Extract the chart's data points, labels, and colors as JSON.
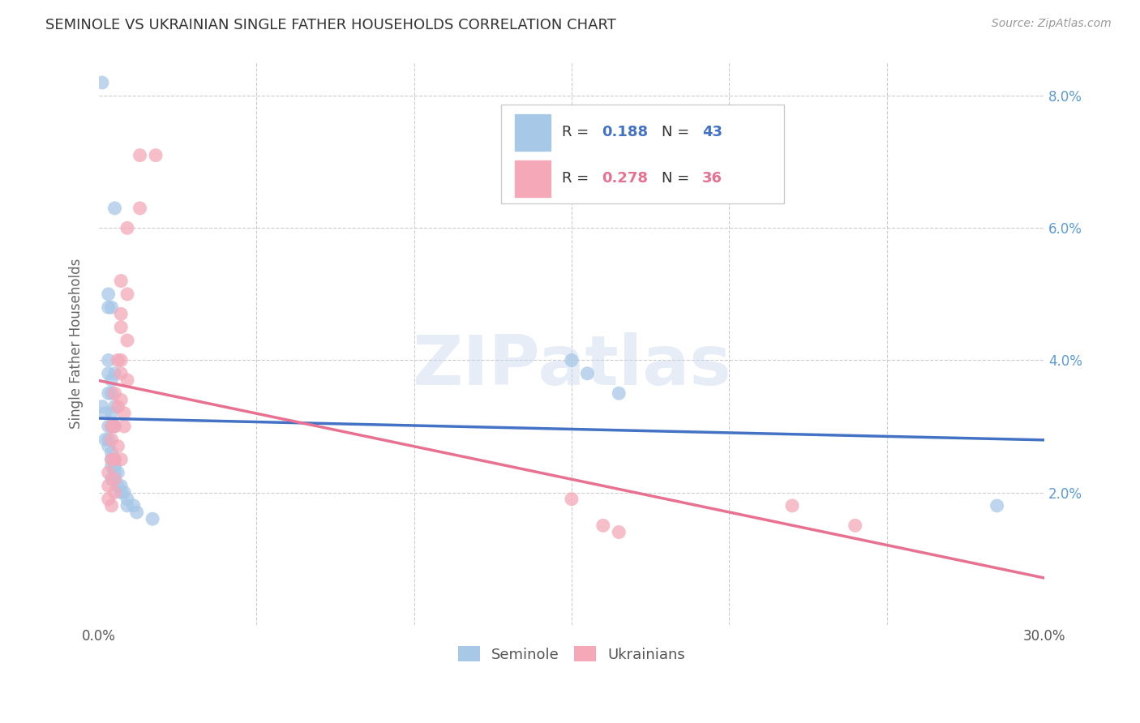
{
  "title": "SEMINOLE VS UKRAINIAN SINGLE FATHER HOUSEHOLDS CORRELATION CHART",
  "source": "Source: ZipAtlas.com",
  "ylabel": "Single Father Households",
  "xlim": [
    0.0,
    0.3
  ],
  "ylim": [
    0.0,
    0.085
  ],
  "xticks": [
    0.0,
    0.05,
    0.1,
    0.15,
    0.2,
    0.25,
    0.3
  ],
  "yticks": [
    0.0,
    0.02,
    0.04,
    0.06,
    0.08
  ],
  "background_color": "#ffffff",
  "grid_color": "#cccccc",
  "watermark": "ZIPatlas",
  "legend_R_seminole": "0.188",
  "legend_N_seminole": "43",
  "legend_R_ukrainian": "0.278",
  "legend_N_ukrainian": "36",
  "seminole_color": "#a8c8e8",
  "ukrainian_color": "#f4a8b8",
  "seminole_line_color": "#4472c4",
  "ukrainian_line_color": "#e87090",
  "tick_color": "#5b9bd5",
  "seminole_points": [
    [
      0.001,
      0.082
    ],
    [
      0.005,
      0.063
    ],
    [
      0.003,
      0.05
    ],
    [
      0.003,
      0.048
    ],
    [
      0.004,
      0.048
    ],
    [
      0.003,
      0.04
    ],
    [
      0.003,
      0.038
    ],
    [
      0.004,
      0.037
    ],
    [
      0.005,
      0.038
    ],
    [
      0.003,
      0.035
    ],
    [
      0.004,
      0.035
    ],
    [
      0.005,
      0.033
    ],
    [
      0.001,
      0.033
    ],
    [
      0.002,
      0.032
    ],
    [
      0.004,
      0.032
    ],
    [
      0.003,
      0.03
    ],
    [
      0.004,
      0.03
    ],
    [
      0.005,
      0.03
    ],
    [
      0.002,
      0.028
    ],
    [
      0.003,
      0.028
    ],
    [
      0.003,
      0.027
    ],
    [
      0.004,
      0.026
    ],
    [
      0.004,
      0.025
    ],
    [
      0.005,
      0.025
    ],
    [
      0.004,
      0.024
    ],
    [
      0.005,
      0.024
    ],
    [
      0.005,
      0.023
    ],
    [
      0.006,
      0.023
    ],
    [
      0.004,
      0.022
    ],
    [
      0.005,
      0.022
    ],
    [
      0.006,
      0.021
    ],
    [
      0.007,
      0.021
    ],
    [
      0.007,
      0.02
    ],
    [
      0.008,
      0.02
    ],
    [
      0.009,
      0.019
    ],
    [
      0.009,
      0.018
    ],
    [
      0.011,
      0.018
    ],
    [
      0.012,
      0.017
    ],
    [
      0.017,
      0.016
    ],
    [
      0.15,
      0.04
    ],
    [
      0.155,
      0.038
    ],
    [
      0.165,
      0.035
    ],
    [
      0.285,
      0.018
    ]
  ],
  "ukrainian_points": [
    [
      0.013,
      0.071
    ],
    [
      0.018,
      0.071
    ],
    [
      0.013,
      0.063
    ],
    [
      0.009,
      0.06
    ],
    [
      0.007,
      0.052
    ],
    [
      0.009,
      0.05
    ],
    [
      0.007,
      0.047
    ],
    [
      0.007,
      0.045
    ],
    [
      0.009,
      0.043
    ],
    [
      0.006,
      0.04
    ],
    [
      0.007,
      0.04
    ],
    [
      0.007,
      0.038
    ],
    [
      0.009,
      0.037
    ],
    [
      0.005,
      0.035
    ],
    [
      0.007,
      0.034
    ],
    [
      0.006,
      0.033
    ],
    [
      0.008,
      0.032
    ],
    [
      0.004,
      0.03
    ],
    [
      0.005,
      0.03
    ],
    [
      0.008,
      0.03
    ],
    [
      0.004,
      0.028
    ],
    [
      0.006,
      0.027
    ],
    [
      0.004,
      0.025
    ],
    [
      0.005,
      0.025
    ],
    [
      0.007,
      0.025
    ],
    [
      0.003,
      0.023
    ],
    [
      0.005,
      0.022
    ],
    [
      0.003,
      0.021
    ],
    [
      0.005,
      0.02
    ],
    [
      0.003,
      0.019
    ],
    [
      0.004,
      0.018
    ],
    [
      0.15,
      0.019
    ],
    [
      0.16,
      0.015
    ],
    [
      0.165,
      0.014
    ],
    [
      0.22,
      0.018
    ],
    [
      0.24,
      0.015
    ]
  ]
}
